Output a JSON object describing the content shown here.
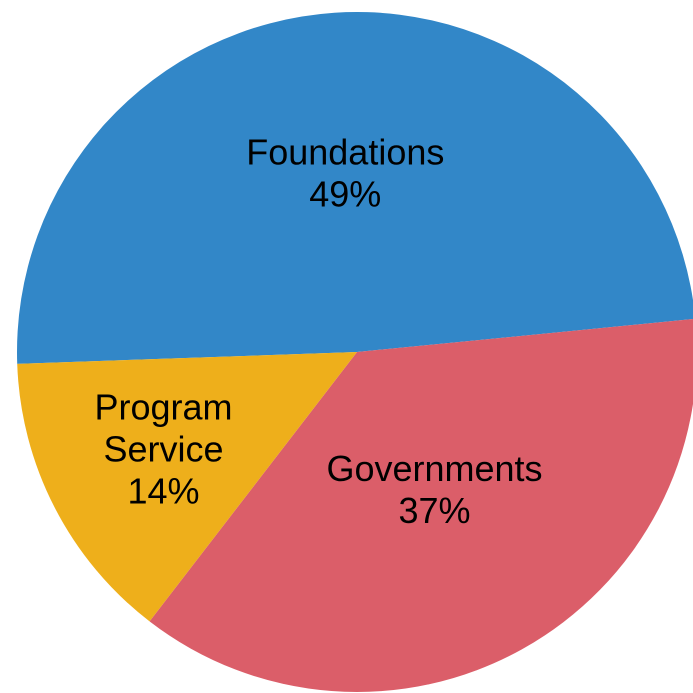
{
  "chart_data": {
    "type": "pie",
    "slices": [
      {
        "label_lines": [
          "Foundations"
        ],
        "value": 49,
        "value_label": "49%",
        "color": "#3287C8"
      },
      {
        "label_lines": [
          "Governments"
        ],
        "value": 37,
        "value_label": "37%",
        "color": "#DB5E69"
      },
      {
        "label_lines": [
          "Program",
          "Service"
        ],
        "value": 14,
        "value_label": "14%",
        "color": "#EEAF1B"
      }
    ]
  }
}
